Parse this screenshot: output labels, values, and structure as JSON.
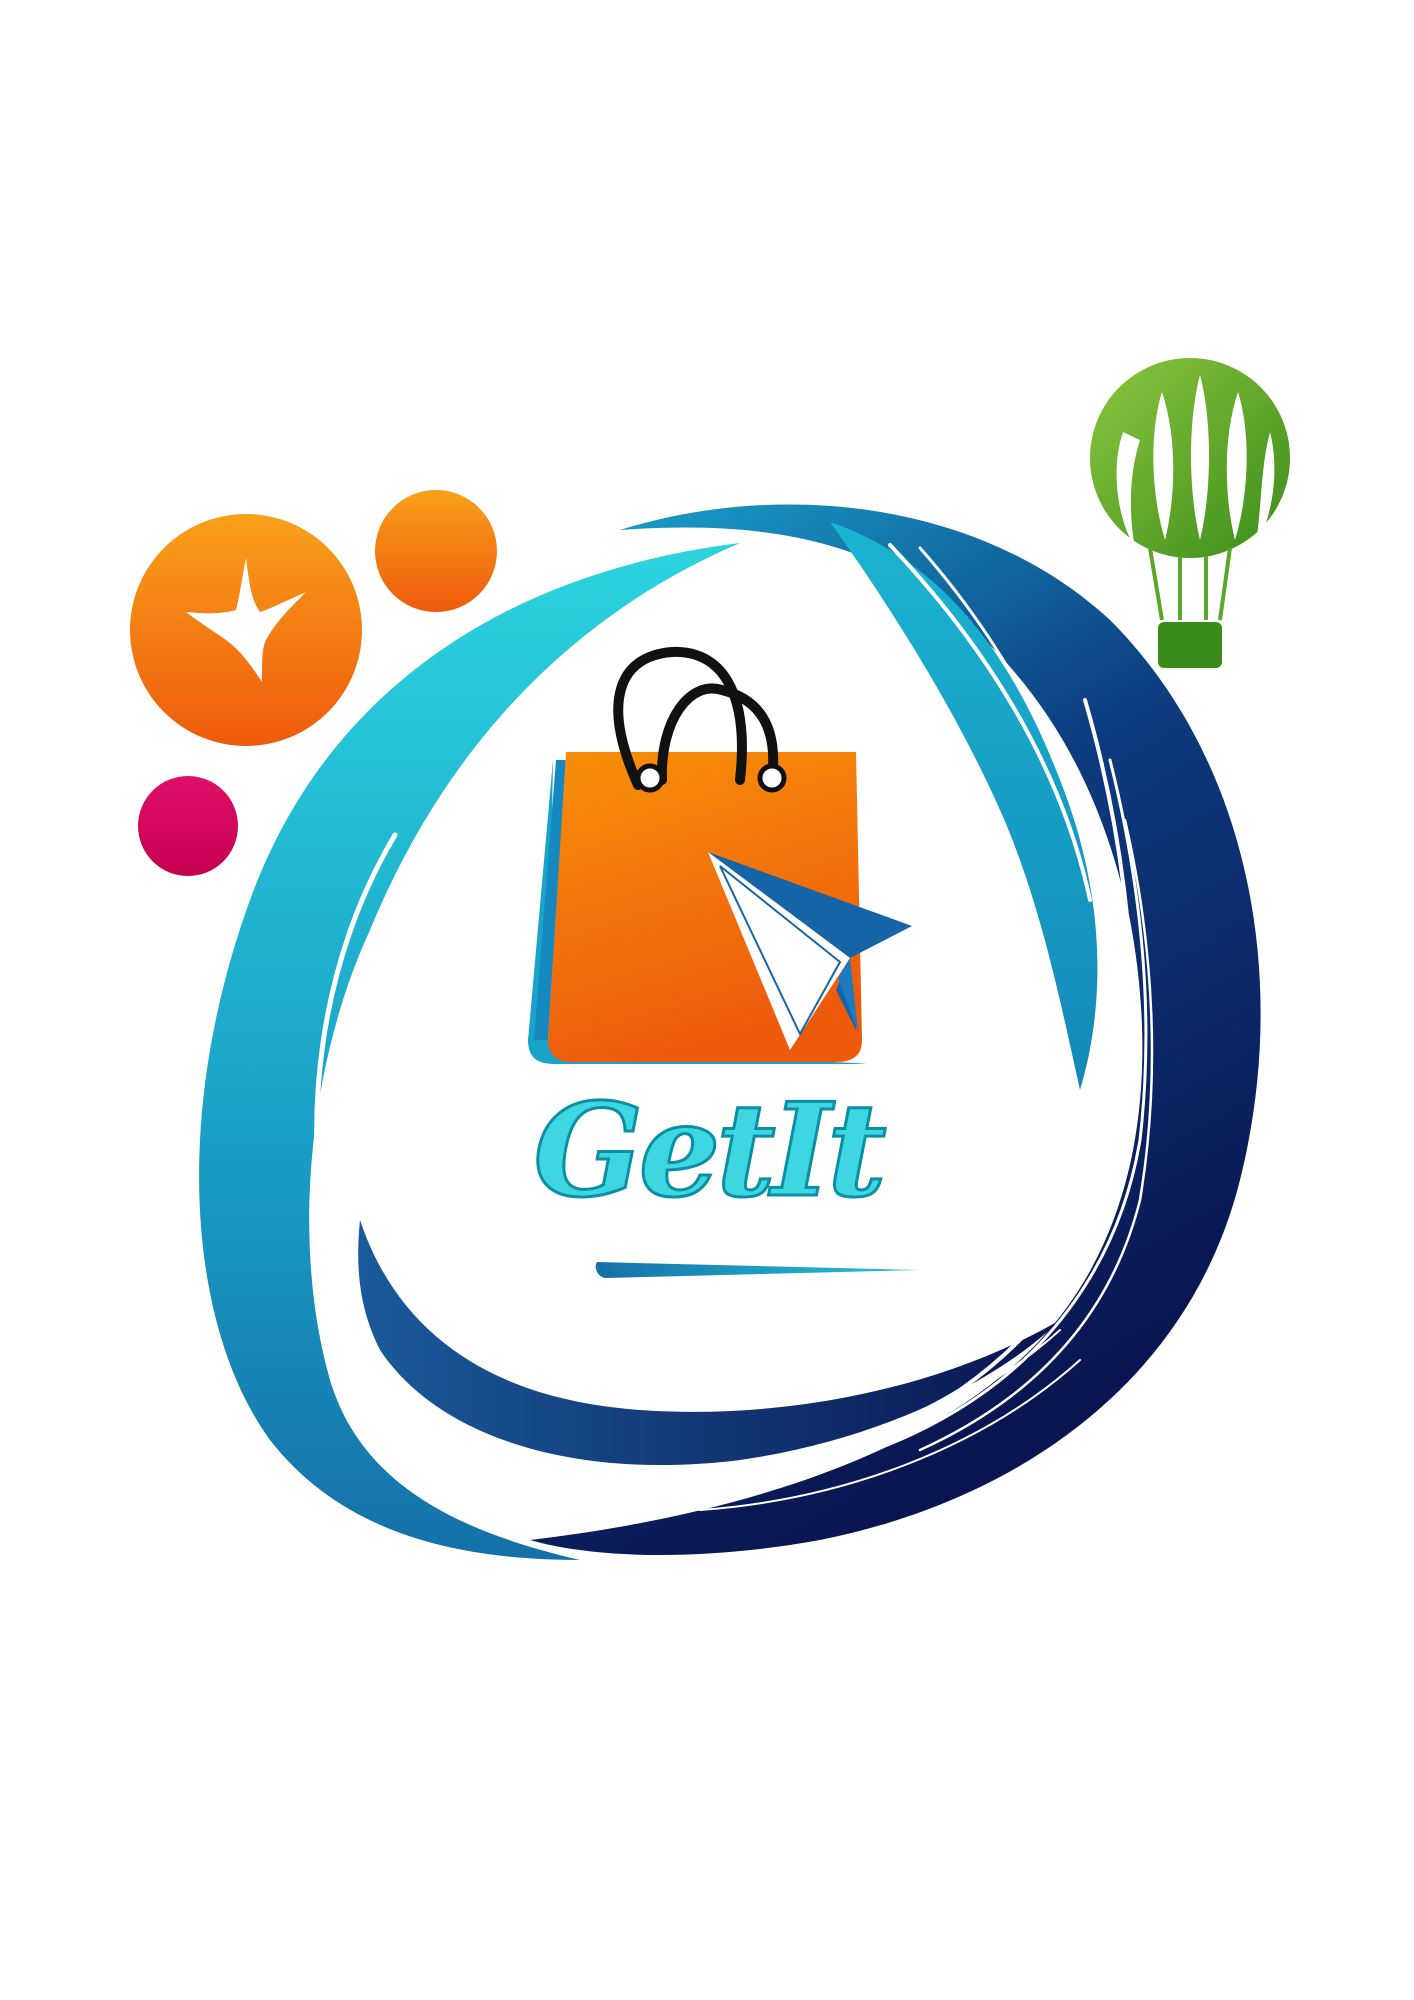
{
  "logo": {
    "brand_name": "GetIt",
    "colors": {
      "background": "#ffffff",
      "cyan_light": "#2cd3df",
      "teal": "#1aa3c8",
      "navy": "#0a1450",
      "navy_mid": "#0d2a6e",
      "orange_light": "#f9a01b",
      "orange_dark": "#ee5a0c",
      "magenta": "#d6005a",
      "green_light": "#8cc63f",
      "green_dark": "#3a8c1a",
      "text_fill": "#3ed6e0",
      "text_outline": "#0b8fa6",
      "cursor_blue": "#1565a8",
      "handle_black": "#111111"
    },
    "icons": [
      "shopping-bag-icon",
      "cursor-arrow-icon",
      "sparkle-star-icon",
      "hot-air-balloon-icon"
    ]
  }
}
